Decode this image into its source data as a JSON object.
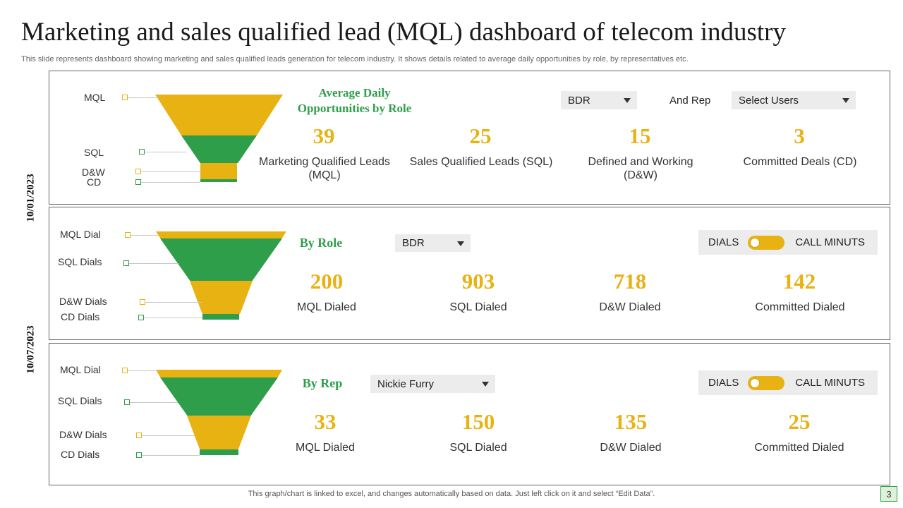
{
  "title": "Marketing and sales qualified lead (MQL) dashboard of telecom industry",
  "subtitle": "This slide represents dashboard showing marketing and sales qualified leads generation for telecom industry. It shows details related to average daily opportunities by role, by representatives etc.",
  "dates": [
    "10/01/2023",
    "10/07/2023"
  ],
  "colors": {
    "yellow": "#e8b213",
    "green": "#2e9e4a",
    "panel_border": "#666666"
  },
  "panel1": {
    "funnel_labels": [
      "MQL",
      "SQL",
      "D&W",
      "CD"
    ],
    "heading": "Average Daily Opportunities by Role",
    "role_select": "BDR",
    "and_rep_label": "And Rep",
    "users_select": "Select Users",
    "metrics": [
      {
        "value": "39",
        "label": "Marketing Qualified Leads (MQL)"
      },
      {
        "value": "25",
        "label": "Sales Qualified Leads (SQL)"
      },
      {
        "value": "15",
        "label": "Defined and Working (D&W)"
      },
      {
        "value": "3",
        "label": "Committed Deals (CD)"
      }
    ]
  },
  "panel2": {
    "funnel_labels": [
      "MQL Dial",
      "SQL Dials",
      "D&W Dials",
      "CD Dials"
    ],
    "heading": "By Role",
    "role_select": "BDR",
    "toggle": {
      "left": "DIALS",
      "right": "CALL MINUTS"
    },
    "metrics": [
      {
        "value": "200",
        "label": "MQL Dialed"
      },
      {
        "value": "903",
        "label": "SQL Dialed"
      },
      {
        "value": "718",
        "label": "D&W Dialed"
      },
      {
        "value": "142",
        "label": "Committed Dialed"
      }
    ]
  },
  "panel3": {
    "funnel_labels": [
      "MQL Dial",
      "SQL Dials",
      "D&W Dials",
      "CD Dials"
    ],
    "heading": "By Rep",
    "rep_select": "Nickie Furry",
    "toggle": {
      "left": "DIALS",
      "right": "CALL MINUTS"
    },
    "metrics": [
      {
        "value": "33",
        "label": "MQL Dialed"
      },
      {
        "value": "150",
        "label": "SQL Dialed"
      },
      {
        "value": "135",
        "label": "D&W Dialed"
      },
      {
        "value": "25",
        "label": "Committed Dialed"
      }
    ]
  },
  "footer": "This graph/chart is linked to excel, and changes automatically based on data. Just left click on it and select “Edit Data”.",
  "page_number": "3"
}
